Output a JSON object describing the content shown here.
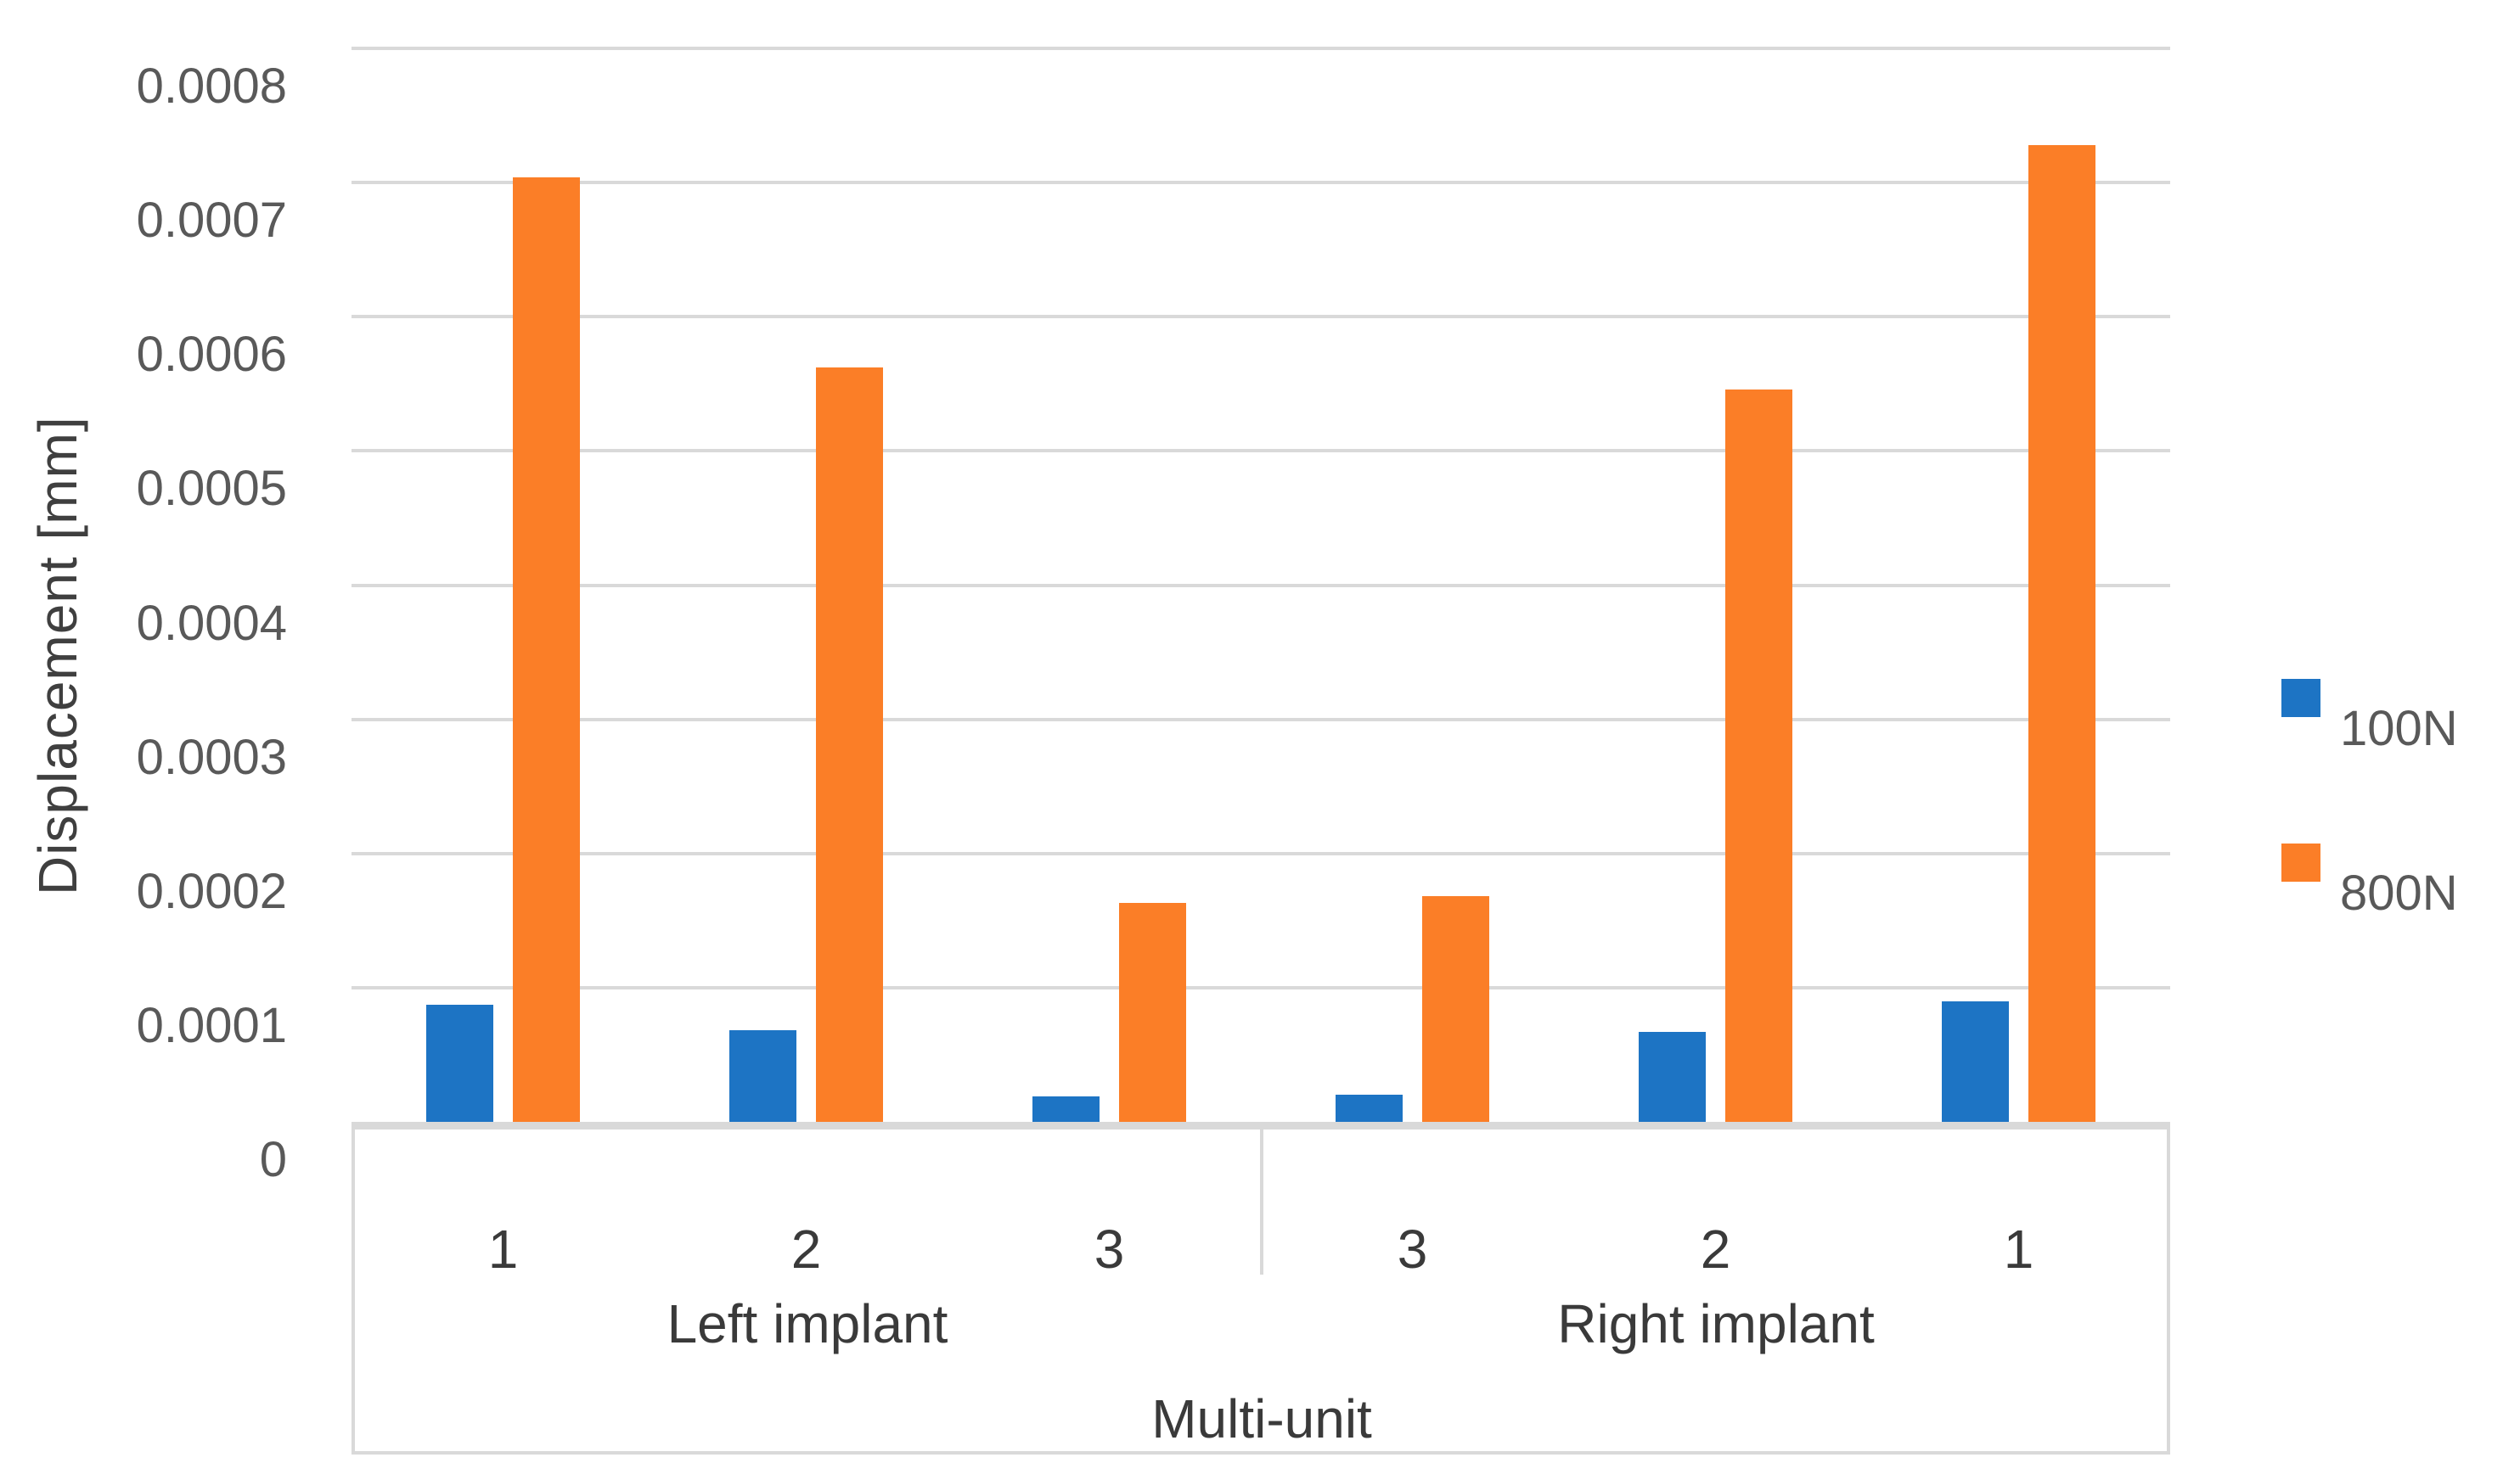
{
  "chart_data": {
    "type": "bar",
    "title": "",
    "ylabel": "Displacement [mm]",
    "xlabel_outer": "Multi-unit",
    "ylim": [
      0,
      0.0008
    ],
    "grid": true,
    "legend_position": "right",
    "gridline_color": "#d9d9d9",
    "axis_text_color": "#595959",
    "category_text_color": "#3a3a3a",
    "yticks": [
      {
        "value": 0,
        "label": "0"
      },
      {
        "value": 0.0001,
        "label": "0.0001"
      },
      {
        "value": 0.0002,
        "label": "0.0002"
      },
      {
        "value": 0.0003,
        "label": "0.0003"
      },
      {
        "value": 0.0004,
        "label": "0.0004"
      },
      {
        "value": 0.0005,
        "label": "0.0005"
      },
      {
        "value": 0.0006,
        "label": "0.0006"
      },
      {
        "value": 0.0007,
        "label": "0.0007"
      },
      {
        "value": 0.0008,
        "label": "0.0008"
      }
    ],
    "categories": [
      "1",
      "2",
      "3",
      "3",
      "2",
      "1"
    ],
    "groups": [
      {
        "label": "Left implant"
      },
      {
        "label": "Right implant"
      }
    ],
    "series": [
      {
        "name": "100N",
        "color": "#1d74c4",
        "values": [
          8.7e-05,
          6.8e-05,
          1.9e-05,
          2e-05,
          6.7e-05,
          9e-05
        ]
      },
      {
        "name": "800N",
        "color": "#fb7e27",
        "values": [
          0.000704,
          0.000562,
          0.000163,
          0.000168,
          0.000546,
          0.000728
        ]
      }
    ]
  }
}
